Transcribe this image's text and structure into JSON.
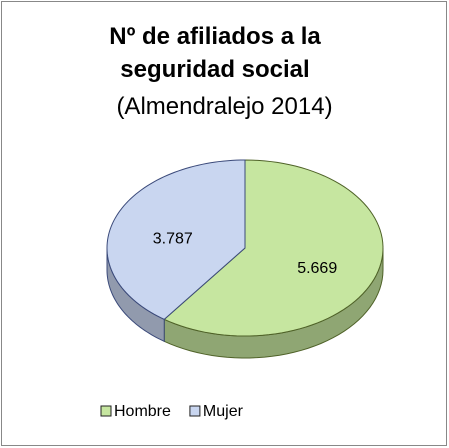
{
  "chart_data": {
    "type": "pie",
    "title": "Nº de afiliados a la seguridad social",
    "subtitle": "(Almendralejo 2014)",
    "categories": [
      "Hombre",
      "Mujer"
    ],
    "values": [
      5669,
      3787
    ],
    "value_labels": [
      "5.669",
      "3.787"
    ],
    "colors": [
      "#c6e6a0",
      "#c9d6f0"
    ],
    "legend": "bottom",
    "three_d": true
  }
}
